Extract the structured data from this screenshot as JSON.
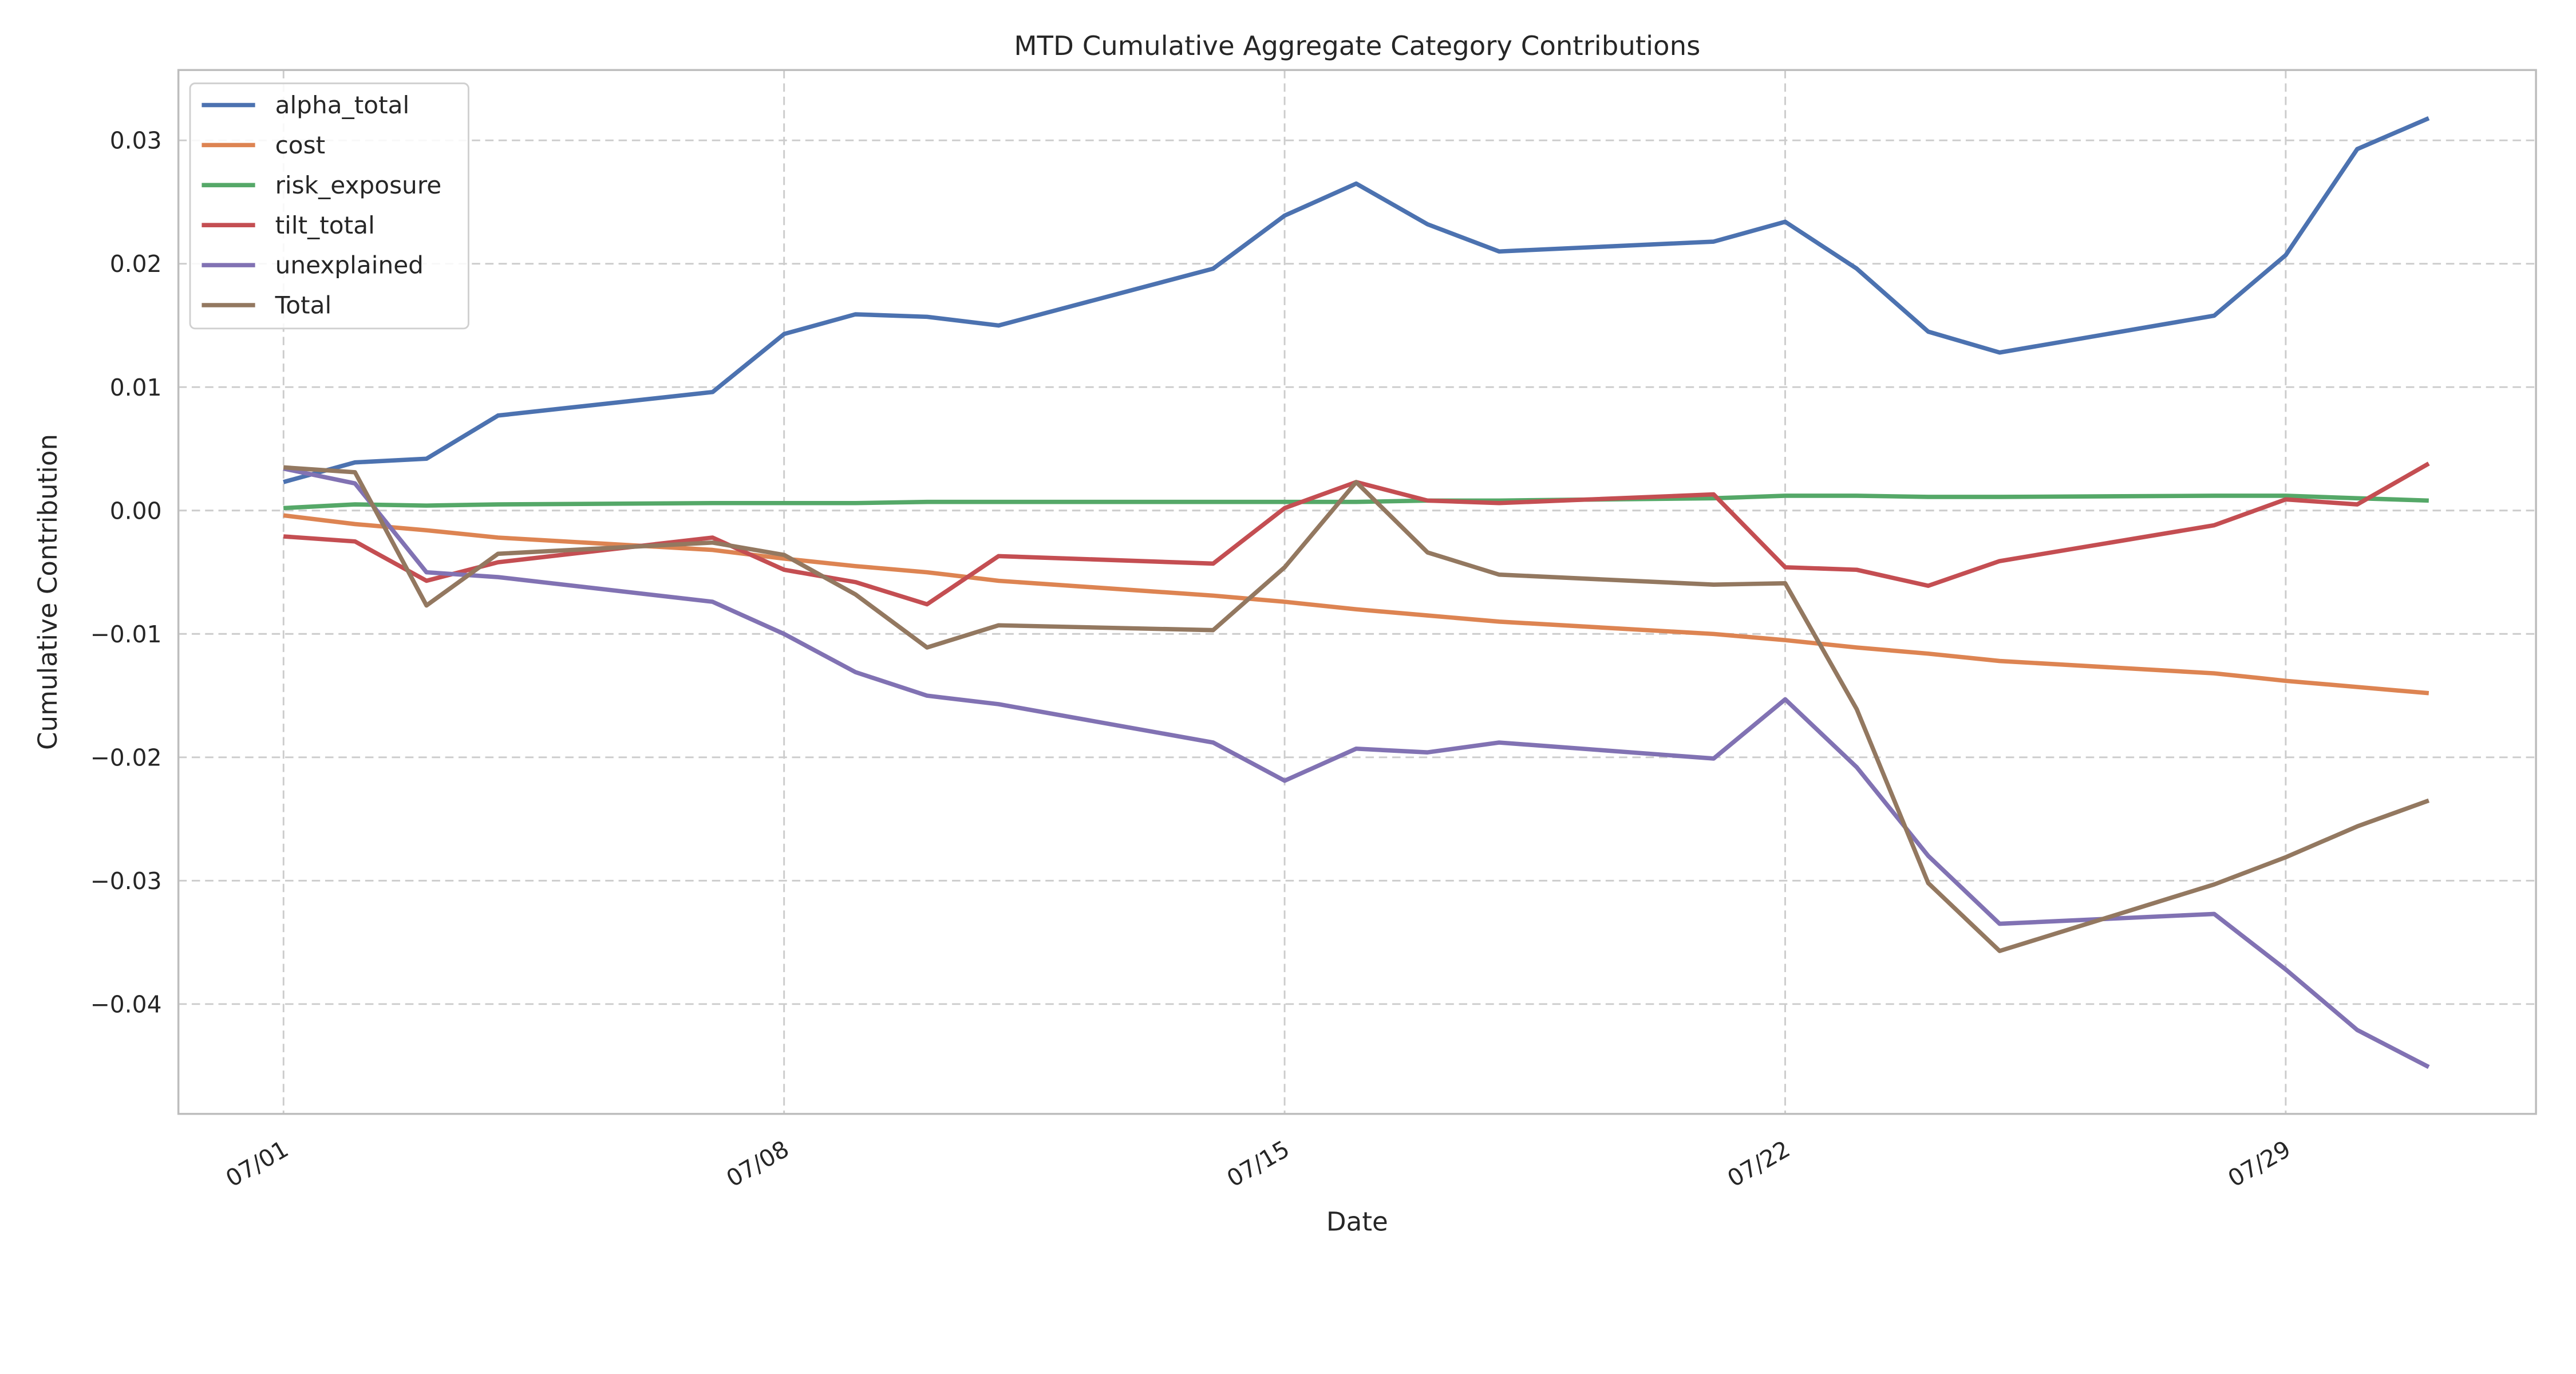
{
  "chart_data": {
    "type": "line",
    "title": "MTD Cumulative Aggregate Category Contributions",
    "xlabel": "Date",
    "ylabel": "Cumulative Contribution",
    "x": [
      "07/01",
      "07/02",
      "07/03",
      "07/04",
      "07/07",
      "07/08",
      "07/09",
      "07/10",
      "07/11",
      "07/14",
      "07/15",
      "07/16",
      "07/17",
      "07/18",
      "07/21",
      "07/22",
      "07/23",
      "07/24",
      "07/25",
      "07/28",
      "07/29",
      "07/30",
      "07/31"
    ],
    "x_day": [
      1,
      2,
      3,
      4,
      7,
      8,
      9,
      10,
      11,
      14,
      15,
      16,
      17,
      18,
      21,
      22,
      23,
      24,
      25,
      28,
      29,
      30,
      31
    ],
    "xlim_day": [
      -0.47,
      32.5
    ],
    "xticks": [
      {
        "day": 1,
        "label": "07/01"
      },
      {
        "day": 8,
        "label": "07/08"
      },
      {
        "day": 15,
        "label": "07/15"
      },
      {
        "day": 22,
        "label": "07/22"
      },
      {
        "day": 29,
        "label": "07/29"
      }
    ],
    "ylim": [
      -0.0489,
      0.0357
    ],
    "yticks": [
      {
        "v": 0.03,
        "label": "0.03"
      },
      {
        "v": 0.02,
        "label": "0.02"
      },
      {
        "v": 0.01,
        "label": "0.01"
      },
      {
        "v": 0.0,
        "label": "0.00"
      },
      {
        "v": -0.01,
        "label": "−0.01"
      },
      {
        "v": -0.02,
        "label": "−0.02"
      },
      {
        "v": -0.03,
        "label": "−0.03"
      },
      {
        "v": -0.04,
        "label": "−0.04"
      }
    ],
    "grid": true,
    "legend_position": "top-left",
    "series": [
      {
        "name": "alpha_total",
        "color": "#4C72B0",
        "values": [
          0.0023,
          0.0039,
          0.0042,
          0.0077,
          0.0096,
          0.0143,
          0.0159,
          0.0157,
          0.015,
          0.0196,
          0.0239,
          0.0265,
          0.0232,
          0.021,
          0.0218,
          0.0234,
          0.0196,
          0.0145,
          0.0128,
          0.0158,
          0.0207,
          0.0293,
          0.0318
        ]
      },
      {
        "name": "cost",
        "color": "#DD8452",
        "values": [
          -0.0004,
          -0.0011,
          -0.0016,
          -0.0022,
          -0.0032,
          -0.0039,
          -0.0045,
          -0.005,
          -0.0057,
          -0.0069,
          -0.0074,
          -0.008,
          -0.0085,
          -0.009,
          -0.01,
          -0.0105,
          -0.0111,
          -0.0116,
          -0.0122,
          -0.0132,
          -0.0138,
          -0.0143,
          -0.0148
        ]
      },
      {
        "name": "risk_exposure",
        "color": "#55A868",
        "values": [
          0.0002,
          0.0005,
          0.0004,
          0.0005,
          0.0006,
          0.0006,
          0.0006,
          0.0007,
          0.0007,
          0.0007,
          0.0007,
          0.0007,
          0.0008,
          0.0008,
          0.001,
          0.0012,
          0.0012,
          0.0011,
          0.0011,
          0.0012,
          0.0012,
          0.001,
          0.0008
        ]
      },
      {
        "name": "tilt_total",
        "color": "#C44E52",
        "values": [
          -0.0021,
          -0.0025,
          -0.0057,
          -0.0042,
          -0.0022,
          -0.0048,
          -0.0058,
          -0.0076,
          -0.0037,
          -0.0043,
          0.0002,
          0.0023,
          0.0008,
          0.0006,
          0.0013,
          -0.0046,
          -0.0048,
          -0.0061,
          -0.0041,
          -0.0012,
          0.0009,
          0.0005,
          0.0038
        ]
      },
      {
        "name": "unexplained",
        "color": "#8172B3",
        "values": [
          0.0034,
          0.0022,
          -0.005,
          -0.0054,
          -0.0074,
          -0.01,
          -0.0131,
          -0.015,
          -0.0157,
          -0.0188,
          -0.0219,
          -0.0193,
          -0.0196,
          -0.0188,
          -0.0201,
          -0.0153,
          -0.0208,
          -0.028,
          -0.0335,
          -0.0327,
          -0.0372,
          -0.0421,
          -0.0451
        ]
      },
      {
        "name": "Total",
        "color": "#937860",
        "values": [
          0.0035,
          0.0031,
          -0.0077,
          -0.0035,
          -0.0026,
          -0.0036,
          -0.0068,
          -0.0111,
          -0.0093,
          -0.0097,
          -0.0046,
          0.0023,
          -0.0034,
          -0.0052,
          -0.006,
          -0.0059,
          -0.0161,
          -0.0302,
          -0.0357,
          -0.0303,
          -0.0281,
          -0.0256,
          -0.0235
        ]
      }
    ]
  }
}
